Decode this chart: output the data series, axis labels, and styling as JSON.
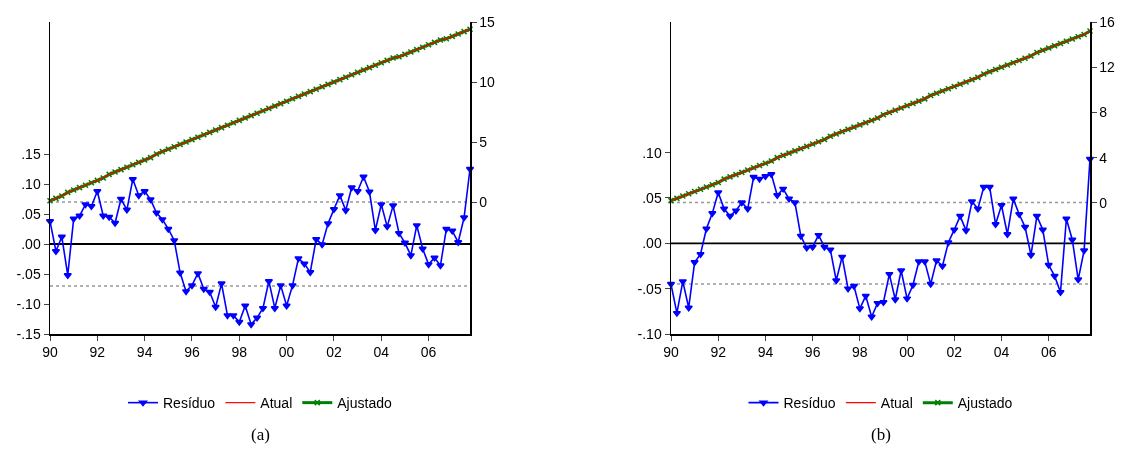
{
  "chart_data": [
    {
      "type": "line",
      "annotations": [
        "(a)"
      ],
      "x": [
        1990,
        1990.25,
        1990.5,
        1990.75,
        1991,
        1991.25,
        1991.5,
        1991.75,
        1992,
        1992.25,
        1992.5,
        1992.75,
        1993,
        1993.25,
        1993.5,
        1993.75,
        1994,
        1994.25,
        1994.5,
        1994.75,
        1995,
        1995.25,
        1995.5,
        1995.75,
        1996,
        1996.25,
        1996.5,
        1996.75,
        1997,
        1997.25,
        1997.5,
        1997.75,
        1998,
        1998.25,
        1998.5,
        1998.75,
        1999,
        1999.25,
        1999.5,
        1999.75,
        2000,
        2000.25,
        2000.5,
        2000.75,
        2001,
        2001.25,
        2001.5,
        2001.75,
        2002,
        2002.25,
        2002.5,
        2002.75,
        2003,
        2003.25,
        2003.5,
        2003.75,
        2004,
        2004.25,
        2004.5,
        2004.75,
        2005,
        2005.25,
        2005.5,
        2005.75,
        2006,
        2006.25,
        2006.5,
        2006.75,
        2007,
        2007.25,
        2007.5,
        2007.75
      ],
      "series": [
        {
          "name": "Resíduo",
          "color": "#0000ff",
          "marker": "triangle",
          "values": [
            0.038,
            -0.012,
            0.012,
            -0.052,
            0.042,
            0.047,
            0.066,
            0.063,
            0.088,
            0.047,
            0.045,
            0.035,
            0.075,
            0.057,
            0.108,
            0.081,
            0.088,
            0.074,
            0.052,
            0.041,
            0.025,
            0.006,
            -0.048,
            -0.079,
            -0.069,
            -0.049,
            -0.075,
            -0.08,
            -0.105,
            -0.066,
            -0.119,
            -0.119,
            -0.13,
            -0.103,
            -0.134,
            -0.123,
            -0.107,
            -0.062,
            -0.107,
            -0.069,
            -0.103,
            -0.069,
            -0.024,
            -0.033,
            -0.047,
            0.008,
            -0.001,
            0.034,
            0.058,
            0.081,
            0.056,
            0.094,
            0.088,
            0.112,
            0.087,
            0.023,
            0.066,
            0.029,
            0.064,
            0.018,
            0.002,
            -0.019,
            0.031,
            -0.008,
            -0.034,
            -0.023,
            -0.036,
            0.025,
            0.022,
            0.003,
            0.044,
            0.125
          ]
        },
        {
          "name": "Atual",
          "color": "#ff0000",
          "axis": "y2",
          "marker": "none",
          "values": [
            0.1,
            0.3,
            0.5,
            0.8,
            1.0,
            1.2,
            1.4,
            1.6,
            1.8,
            2.0,
            2.3,
            2.5,
            2.7,
            2.9,
            3.1,
            3.3,
            3.5,
            3.7,
            4.0,
            4.2,
            4.4,
            4.6,
            4.8,
            5.0,
            5.2,
            5.4,
            5.6,
            5.8,
            6.0,
            6.2,
            6.4,
            6.6,
            6.8,
            7.0,
            7.2,
            7.4,
            7.6,
            7.8,
            8.0,
            8.2,
            8.4,
            8.6,
            8.8,
            9.0,
            9.2,
            9.4,
            9.6,
            9.8,
            10.0,
            10.2,
            10.4,
            10.6,
            10.8,
            11.0,
            11.2,
            11.4,
            11.6,
            11.8,
            12.0,
            12.1,
            12.3,
            12.5,
            12.7,
            12.9,
            13.1,
            13.3,
            13.5,
            13.6,
            13.8,
            14.0,
            14.2,
            14.4
          ]
        },
        {
          "name": "Ajustado",
          "color": "#008000",
          "axis": "y2",
          "marker": "cross",
          "values": [
            0.1,
            0.3,
            0.5,
            0.8,
            1.0,
            1.2,
            1.4,
            1.6,
            1.8,
            2.0,
            2.3,
            2.5,
            2.7,
            2.9,
            3.1,
            3.3,
            3.5,
            3.7,
            4.0,
            4.2,
            4.4,
            4.6,
            4.8,
            5.0,
            5.2,
            5.4,
            5.6,
            5.8,
            6.0,
            6.2,
            6.4,
            6.6,
            6.8,
            7.0,
            7.2,
            7.4,
            7.6,
            7.8,
            8.0,
            8.2,
            8.4,
            8.6,
            8.8,
            9.0,
            9.2,
            9.4,
            9.6,
            9.8,
            10.0,
            10.2,
            10.4,
            10.6,
            10.8,
            11.0,
            11.2,
            11.4,
            11.6,
            11.8,
            12.0,
            12.1,
            12.3,
            12.5,
            12.7,
            12.9,
            13.1,
            13.3,
            13.5,
            13.6,
            13.8,
            14.0,
            14.2,
            14.4
          ]
        }
      ],
      "xlim": [
        1990,
        2007.75
      ],
      "xticks": [
        {
          "value": 1990,
          "label": "90"
        },
        {
          "value": 1992,
          "label": "92"
        },
        {
          "value": 1994,
          "label": "94"
        },
        {
          "value": 1996,
          "label": "96"
        },
        {
          "value": 1998,
          "label": "98"
        },
        {
          "value": 2000,
          "label": "00"
        },
        {
          "value": 2002,
          "label": "02"
        },
        {
          "value": 2004,
          "label": "04"
        },
        {
          "value": 2006,
          "label": "06"
        }
      ],
      "ylim": [
        -0.15,
        0.37
      ],
      "yticks": [
        {
          "value": -0.15,
          "label": "-.15"
        },
        {
          "value": -0.1,
          "label": "-.10"
        },
        {
          "value": -0.05,
          "label": "-.05"
        },
        {
          "value": 0,
          "label": ".00"
        },
        {
          "value": 0.05,
          "label": ".05"
        },
        {
          "value": 0.1,
          "label": ".10"
        },
        {
          "value": 0.15,
          "label": ".15"
        }
      ],
      "y2lim": [
        -11,
        15
      ],
      "y2ticks": [
        0,
        5,
        10,
        15
      ],
      "ref_lines": [
        {
          "axis": "y",
          "value": 0,
          "color": "#000000",
          "line_style": "solid"
        },
        {
          "axis": "y",
          "value": 0.07,
          "color": "#999999",
          "line_style": "dotted"
        },
        {
          "axis": "y",
          "value": -0.07,
          "color": "#999999",
          "line_style": "dotted"
        }
      ],
      "grid": false,
      "legend": "bottom"
    },
    {
      "type": "line",
      "annotations": [
        "(b)"
      ],
      "x": [
        1990,
        1990.25,
        1990.5,
        1990.75,
        1991,
        1991.25,
        1991.5,
        1991.75,
        1992,
        1992.25,
        1992.5,
        1992.75,
        1993,
        1993.25,
        1993.5,
        1993.75,
        1994,
        1994.25,
        1994.5,
        1994.75,
        1995,
        1995.25,
        1995.5,
        1995.75,
        1996,
        1996.25,
        1996.5,
        1996.75,
        1997,
        1997.25,
        1997.5,
        1997.75,
        1998,
        1998.25,
        1998.5,
        1998.75,
        1999,
        1999.25,
        1999.5,
        1999.75,
        2000,
        2000.25,
        2000.5,
        2000.75,
        2001,
        2001.25,
        2001.5,
        2001.75,
        2002,
        2002.25,
        2002.5,
        2002.75,
        2003,
        2003.25,
        2003.5,
        2003.75,
        2004,
        2004.25,
        2004.5,
        2004.75,
        2005,
        2005.25,
        2005.5,
        2005.75,
        2006,
        2006.25,
        2006.5,
        2006.75,
        2007,
        2007.25,
        2007.5,
        2007.75
      ],
      "series": [
        {
          "name": "Resíduo",
          "color": "#0000ff",
          "marker": "triangle",
          "values": [
            -0.045,
            -0.077,
            -0.042,
            -0.071,
            -0.021,
            -0.012,
            0.016,
            0.033,
            0.056,
            0.038,
            0.03,
            0.036,
            0.045,
            0.038,
            0.073,
            0.071,
            0.074,
            0.076,
            0.053,
            0.06,
            0.049,
            0.045,
            0.008,
            -0.005,
            -0.004,
            0.009,
            -0.004,
            -0.007,
            -0.041,
            -0.015,
            -0.05,
            -0.047,
            -0.072,
            -0.058,
            -0.081,
            -0.066,
            -0.065,
            -0.034,
            -0.062,
            -0.03,
            -0.061,
            -0.046,
            -0.02,
            -0.02,
            -0.045,
            -0.019,
            -0.025,
            0.001,
            0.015,
            0.03,
            0.014,
            0.046,
            0.038,
            0.062,
            0.062,
            0.021,
            0.042,
            0.01,
            0.049,
            0.032,
            0.018,
            -0.013,
            0.03,
            0.015,
            -0.024,
            -0.036,
            -0.054,
            0.027,
            0.004,
            -0.04,
            -0.008,
            0.093
          ]
        },
        {
          "name": "Atual",
          "color": "#ff0000",
          "axis": "y2",
          "marker": "none",
          "values": [
            0.2,
            0.4,
            0.6,
            0.8,
            1.0,
            1.2,
            1.4,
            1.6,
            1.8,
            2.1,
            2.3,
            2.5,
            2.7,
            2.9,
            3.1,
            3.3,
            3.5,
            3.7,
            4.0,
            4.2,
            4.4,
            4.6,
            4.8,
            5.0,
            5.2,
            5.4,
            5.6,
            5.9,
            6.1,
            6.3,
            6.5,
            6.7,
            6.9,
            7.1,
            7.3,
            7.5,
            7.8,
            8.0,
            8.2,
            8.4,
            8.6,
            8.8,
            9.0,
            9.2,
            9.5,
            9.7,
            9.9,
            10.1,
            10.3,
            10.5,
            10.7,
            10.9,
            11.1,
            11.4,
            11.6,
            11.8,
            12.0,
            12.2,
            12.4,
            12.6,
            12.8,
            13.0,
            13.3,
            13.5,
            13.7,
            13.9,
            14.1,
            14.3,
            14.5,
            14.7,
            14.9,
            15.2
          ]
        },
        {
          "name": "Ajustado",
          "color": "#008000",
          "axis": "y2",
          "marker": "cross",
          "values": [
            0.2,
            0.4,
            0.6,
            0.8,
            1.0,
            1.2,
            1.4,
            1.6,
            1.8,
            2.1,
            2.3,
            2.5,
            2.7,
            2.9,
            3.1,
            3.3,
            3.5,
            3.7,
            4.0,
            4.2,
            4.4,
            4.6,
            4.8,
            5.0,
            5.2,
            5.4,
            5.6,
            5.9,
            6.1,
            6.3,
            6.5,
            6.7,
            6.9,
            7.1,
            7.3,
            7.5,
            7.8,
            8.0,
            8.2,
            8.4,
            8.6,
            8.8,
            9.0,
            9.2,
            9.5,
            9.7,
            9.9,
            10.1,
            10.3,
            10.5,
            10.7,
            10.9,
            11.1,
            11.4,
            11.6,
            11.8,
            12.0,
            12.2,
            12.4,
            12.6,
            12.8,
            13.0,
            13.3,
            13.5,
            13.7,
            13.9,
            14.1,
            14.3,
            14.5,
            14.7,
            14.9,
            15.2
          ]
        }
      ],
      "xlim": [
        1990,
        2007.75
      ],
      "xticks": [
        {
          "value": 1990,
          "label": "90"
        },
        {
          "value": 1992,
          "label": "92"
        },
        {
          "value": 1994,
          "label": "94"
        },
        {
          "value": 1996,
          "label": "96"
        },
        {
          "value": 1998,
          "label": "98"
        },
        {
          "value": 2000,
          "label": "00"
        },
        {
          "value": 2002,
          "label": "02"
        },
        {
          "value": 2004,
          "label": "04"
        },
        {
          "value": 2006,
          "label": "06"
        }
      ],
      "ylim": [
        -0.1,
        0.244
      ],
      "yticks": [
        {
          "value": -0.1,
          "label": "-.10"
        },
        {
          "value": -0.05,
          "label": "-.05"
        },
        {
          "value": 0,
          "label": ".00"
        },
        {
          "value": 0.05,
          "label": ".05"
        },
        {
          "value": 0.1,
          "label": ".10"
        }
      ],
      "y2lim": [
        -11.6,
        16
      ],
      "y2ticks": [
        0,
        4,
        8,
        12,
        16
      ],
      "ref_lines": [
        {
          "axis": "y",
          "value": 0,
          "color": "#000000",
          "line_style": "solid"
        },
        {
          "axis": "y",
          "value": 0.045,
          "color": "#999999",
          "line_style": "dotted"
        },
        {
          "axis": "y",
          "value": -0.045,
          "color": "#999999",
          "line_style": "dotted"
        }
      ],
      "grid": false,
      "legend": "bottom"
    }
  ]
}
